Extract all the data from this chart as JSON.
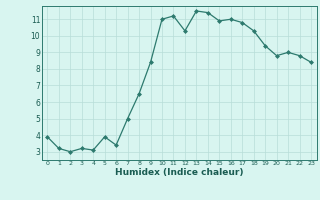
{
  "x": [
    0,
    1,
    2,
    3,
    4,
    5,
    6,
    7,
    8,
    9,
    10,
    11,
    12,
    13,
    14,
    15,
    16,
    17,
    18,
    19,
    20,
    21,
    22,
    23
  ],
  "y": [
    3.9,
    3.2,
    3.0,
    3.2,
    3.1,
    3.9,
    3.4,
    5.0,
    6.5,
    8.4,
    11.0,
    11.2,
    10.3,
    11.5,
    11.4,
    10.9,
    11.0,
    10.8,
    10.3,
    9.4,
    8.8,
    9.0,
    8.8,
    8.4
  ],
  "xlabel": "Humidex (Indice chaleur)",
  "ylim": [
    2.5,
    11.8
  ],
  "yticks": [
    3,
    4,
    5,
    6,
    7,
    8,
    9,
    10,
    11
  ],
  "xticks": [
    0,
    1,
    2,
    3,
    4,
    5,
    6,
    7,
    8,
    9,
    10,
    11,
    12,
    13,
    14,
    15,
    16,
    17,
    18,
    19,
    20,
    21,
    22,
    23
  ],
  "line_color": "#2d7a6e",
  "marker_color": "#2d7a6e",
  "bg_color": "#d8f5f0",
  "grid_color": "#b8ddd8",
  "axes_color": "#2d7a6e",
  "tick_label_color": "#1a5c52",
  "xlabel_color": "#1a5c52"
}
